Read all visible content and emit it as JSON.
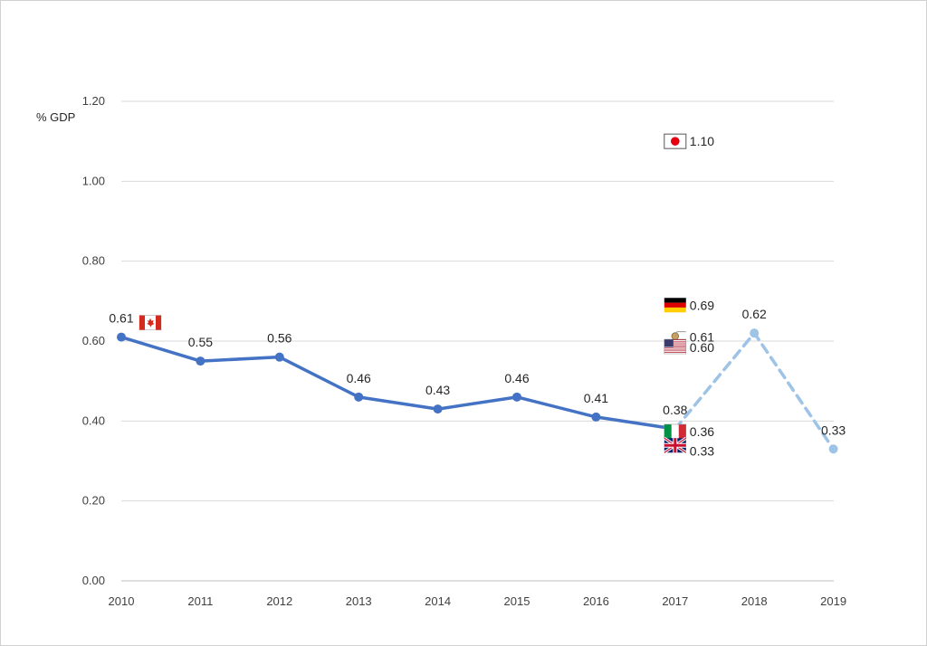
{
  "chart_data": {
    "type": "line",
    "ylabel": "% GDP",
    "ylim": [
      0,
      1.2
    ],
    "y_ticks": [
      "0.00",
      "0.20",
      "0.40",
      "0.60",
      "0.80",
      "1.00",
      "1.20"
    ],
    "categories": [
      "2010",
      "2011",
      "2012",
      "2013",
      "2014",
      "2015",
      "2016",
      "2017",
      "2018",
      "2019"
    ],
    "grid": true,
    "legend": "none",
    "series": [
      {
        "line_style": "solid",
        "color": "#4472C4",
        "x": [
          "2010",
          "2011",
          "2012",
          "2013",
          "2014",
          "2015",
          "2016",
          "2017"
        ],
        "values": [
          0.61,
          0.55,
          0.56,
          0.46,
          0.43,
          0.46,
          0.41,
          0.38
        ],
        "labels": [
          "0.61",
          "0.55",
          "0.56",
          "0.46",
          "0.43",
          "0.46",
          "0.41",
          "0.38"
        ]
      },
      {
        "line_style": "dashed",
        "color": "#9DC3E6",
        "x": [
          "2017",
          "2018",
          "2019"
        ],
        "values": [
          0.38,
          0.62,
          0.33
        ],
        "labels": [
          "",
          "0.62",
          "0.33"
        ]
      }
    ],
    "country_markers": [
      {
        "flag": "japan-flag",
        "x": "2017",
        "value": 1.1,
        "label": "1.10"
      },
      {
        "flag": "germany-flag",
        "x": "2017",
        "value": 0.69,
        "label": "0.69"
      },
      {
        "flag": "france-marker",
        "x": "2017",
        "value": 0.61,
        "label": "0.61"
      },
      {
        "flag": "usa-flag",
        "x": "2017",
        "value": 0.6,
        "label": "0.60"
      },
      {
        "flag": "italy-flag",
        "x": "2017",
        "value": 0.36,
        "label": "0.36"
      },
      {
        "flag": "uk-flag",
        "x": "2017",
        "value": 0.33,
        "label": "0.33"
      },
      {
        "flag": "canada-flag",
        "x": "2010",
        "value": 0.61,
        "label": ""
      }
    ]
  }
}
